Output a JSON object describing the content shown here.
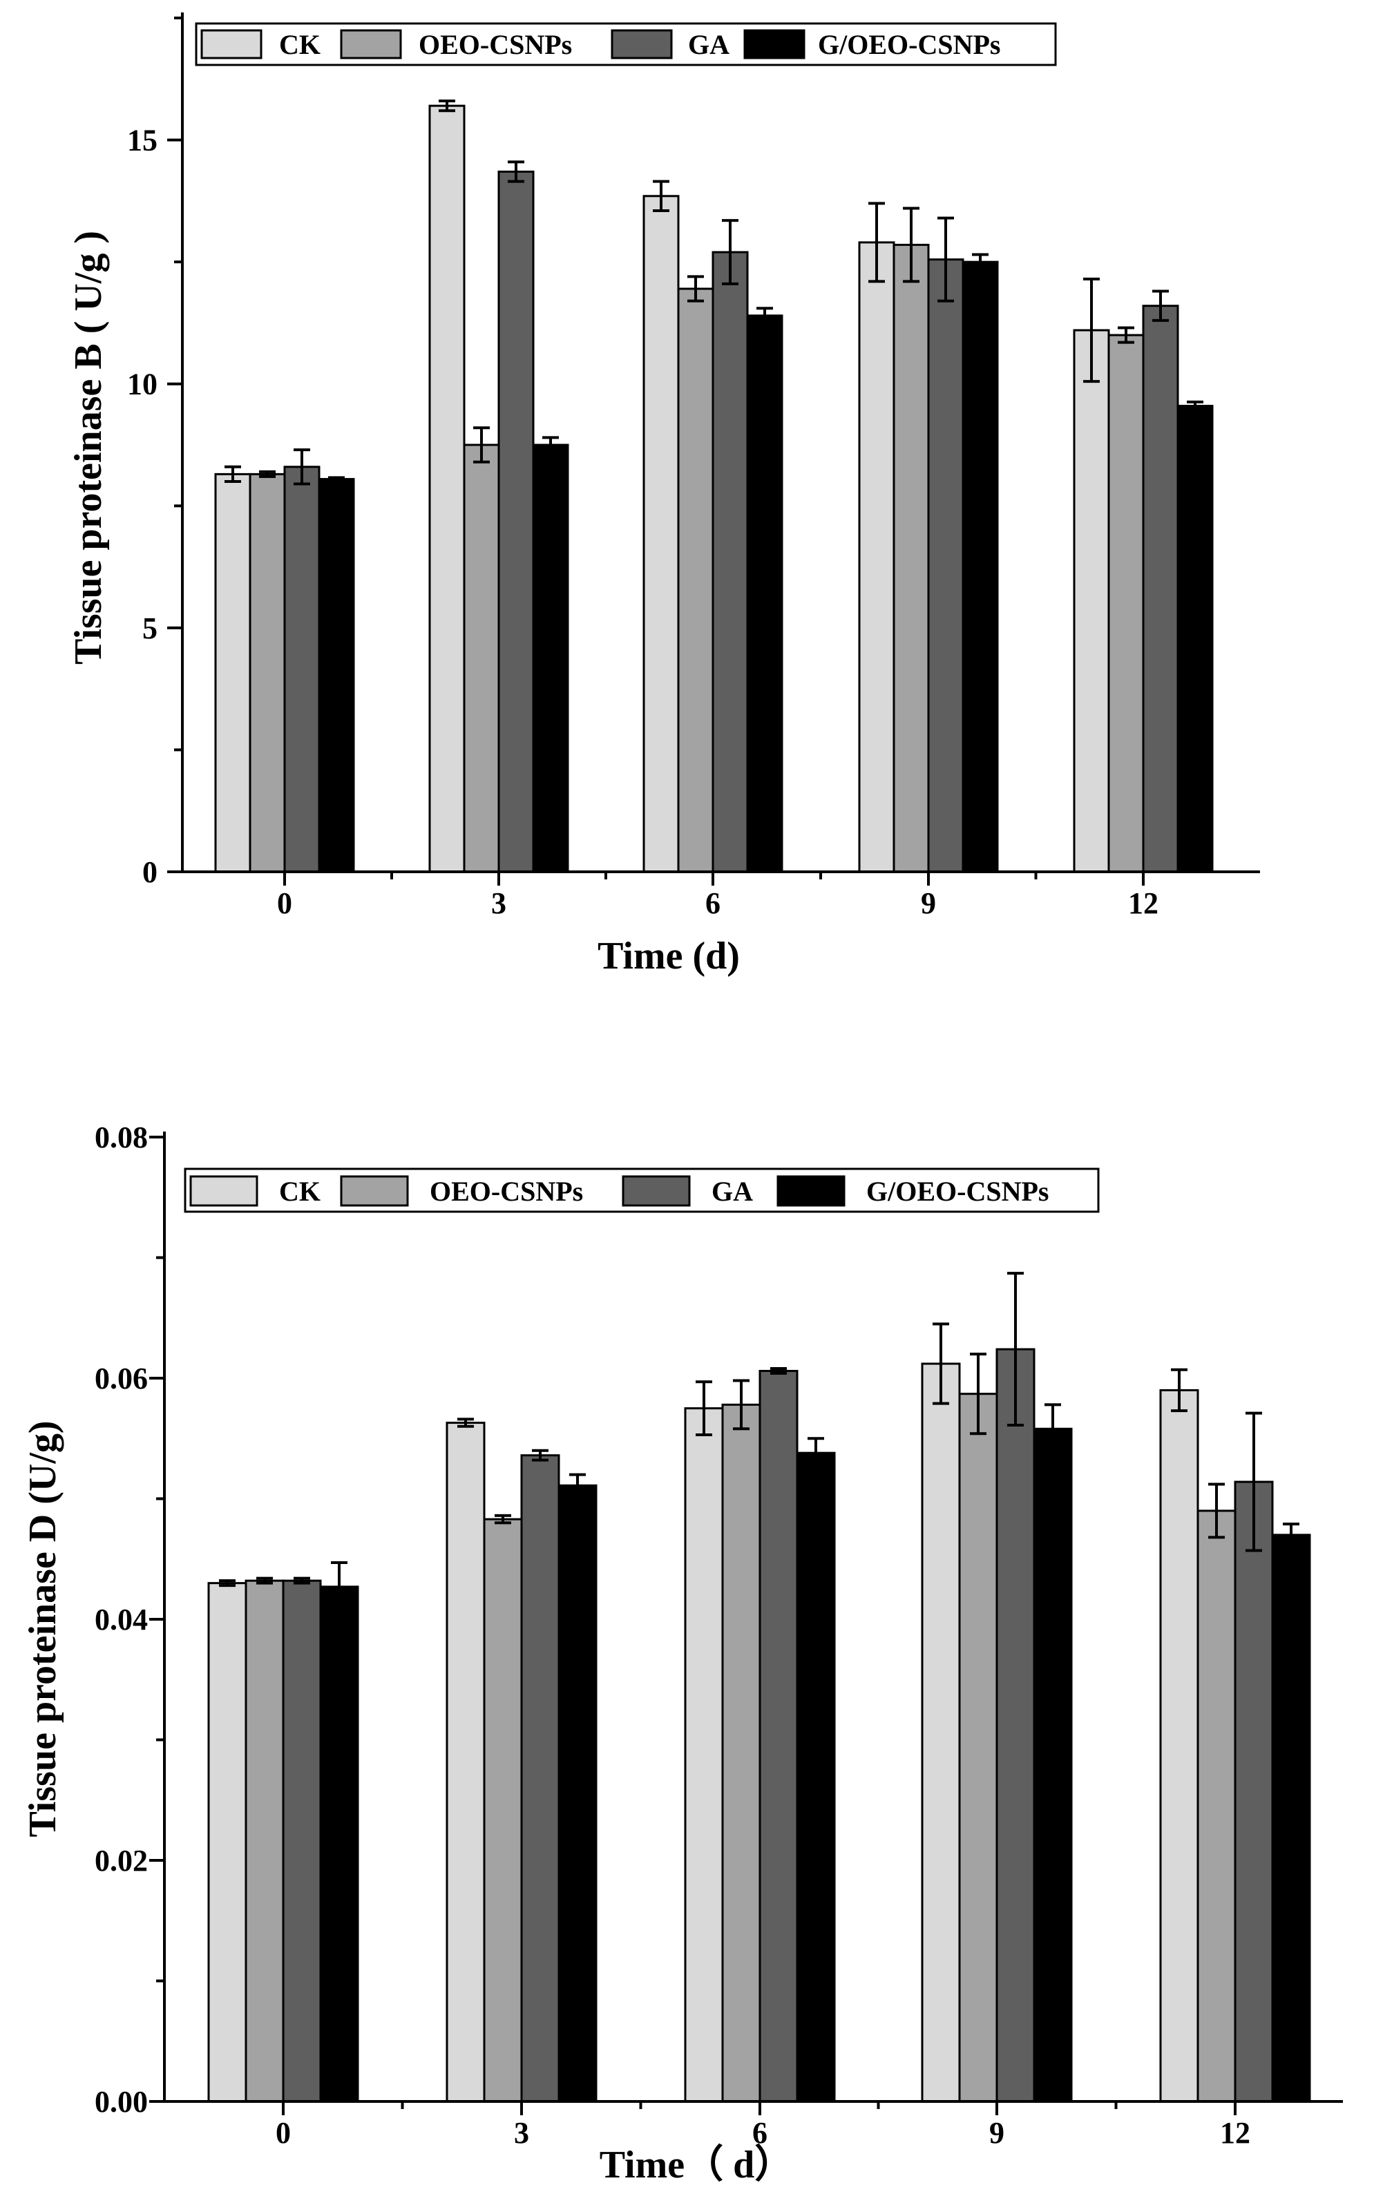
{
  "legend": {
    "series_names": [
      "CK",
      "OEO-CSNPs",
      "GA",
      "G/OEO-CSNPs"
    ]
  },
  "colors": {
    "CK": "#d9d9d9",
    "OEO-CSNPs": "#a3a3a3",
    "GA": "#5f5f5f",
    "G/OEO-CSNPs": "#000000",
    "axis": "#000000"
  },
  "chart_data": [
    {
      "type": "bar",
      "title": "",
      "xlabel": "Time (d)",
      "ylabel": "Tissue proteinase B ( U/g )",
      "categories": [
        "0",
        "3",
        "6",
        "9",
        "12"
      ],
      "ylim": [
        0,
        17.5
      ],
      "yticks": [
        0,
        5,
        10,
        15
      ],
      "ytick_labels": [
        "0",
        "5",
        "10",
        "15"
      ],
      "minor_yticks": [
        2.5,
        7.5,
        12.5,
        17.5
      ],
      "grid": false,
      "legend_position": "top-left",
      "series": [
        {
          "name": "CK",
          "values": [
            8.15,
            15.7,
            13.85,
            12.9,
            11.1
          ],
          "errors": [
            0.15,
            0.1,
            0.3,
            0.8,
            1.05
          ]
        },
        {
          "name": "OEO-CSNPs",
          "values": [
            8.15,
            8.75,
            11.95,
            12.85,
            11.0
          ],
          "errors": [
            0.05,
            0.35,
            0.25,
            0.75,
            0.15
          ]
        },
        {
          "name": "GA",
          "values": [
            8.3,
            14.35,
            12.7,
            12.55,
            11.6
          ],
          "errors": [
            0.35,
            0.2,
            0.65,
            0.85,
            0.3
          ]
        },
        {
          "name": "G/OEO-CSNPs",
          "values": [
            8.05,
            8.75,
            11.4,
            12.5,
            9.55
          ],
          "errors": [
            0.03,
            0.15,
            0.15,
            0.15,
            0.08
          ]
        }
      ]
    },
    {
      "type": "bar",
      "title": "",
      "xlabel": "Time（ d）",
      "ylabel": "Tissue proteinase D (U/g)",
      "categories": [
        "0",
        "3",
        "6",
        "9",
        "12"
      ],
      "ylim": [
        0,
        0.08
      ],
      "yticks": [
        0,
        0.02,
        0.04,
        0.06,
        0.08
      ],
      "ytick_labels": [
        "0.00",
        "0.02",
        "0.04",
        "0.06",
        "0.08"
      ],
      "minor_yticks": [
        0.01,
        0.03,
        0.05,
        0.07
      ],
      "grid": false,
      "legend_position": "top-left",
      "series": [
        {
          "name": "CK",
          "values": [
            0.043,
            0.0563,
            0.0575,
            0.0612,
            0.059
          ],
          "errors": [
            0.0002,
            0.0003,
            0.0022,
            0.0033,
            0.0017
          ]
        },
        {
          "name": "OEO-CSNPs",
          "values": [
            0.0432,
            0.0483,
            0.0578,
            0.0587,
            0.049
          ],
          "errors": [
            0.0002,
            0.0003,
            0.002,
            0.0033,
            0.0022
          ]
        },
        {
          "name": "GA",
          "values": [
            0.0432,
            0.0536,
            0.0606,
            0.0624,
            0.0514
          ],
          "errors": [
            0.0002,
            0.0004,
            0.0002,
            0.0063,
            0.0057
          ]
        },
        {
          "name": "G/OEO-CSNPs",
          "values": [
            0.0427,
            0.0511,
            0.0538,
            0.0558,
            0.047
          ],
          "errors": [
            0.002,
            0.0009,
            0.0012,
            0.002,
            0.0009
          ]
        }
      ]
    }
  ]
}
